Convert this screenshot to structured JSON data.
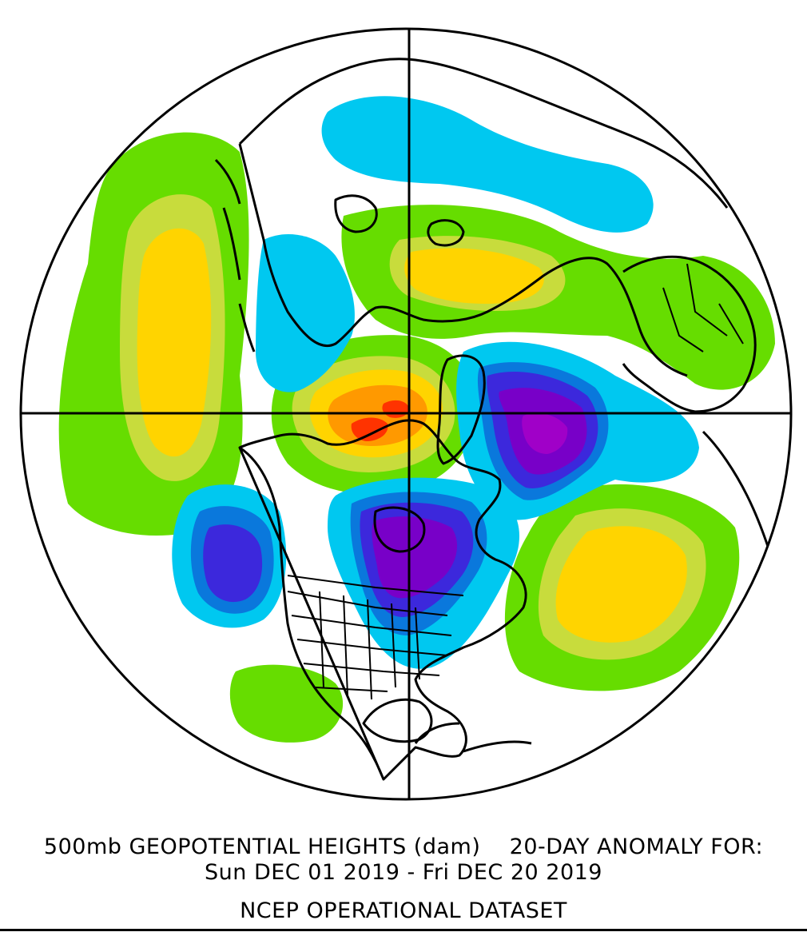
{
  "caption": {
    "line1": "500mb GEOPOTENTIAL HEIGHTS (dam)    20-DAY ANOMALY FOR:",
    "line2": "Sun DEC 01 2019 - Fri DEC 20 2019",
    "line3": "NCEP OPERATIONAL DATASET"
  },
  "colors": {
    "ocean_background": "#ffffff",
    "coastline": "#000000",
    "positive_weak": "#66dd00",
    "positive_moderate": "#c8dc3c",
    "positive_strong": "#ffd400",
    "positive_very_strong": "#ff9900",
    "positive_extreme": "#ff3300",
    "negative_weak": "#00c8f0",
    "negative_moderate": "#0a78dc",
    "negative_strong": "#3c28dc",
    "negative_very_strong": "#7800c8",
    "negative_extreme": "#a000c8"
  }
}
